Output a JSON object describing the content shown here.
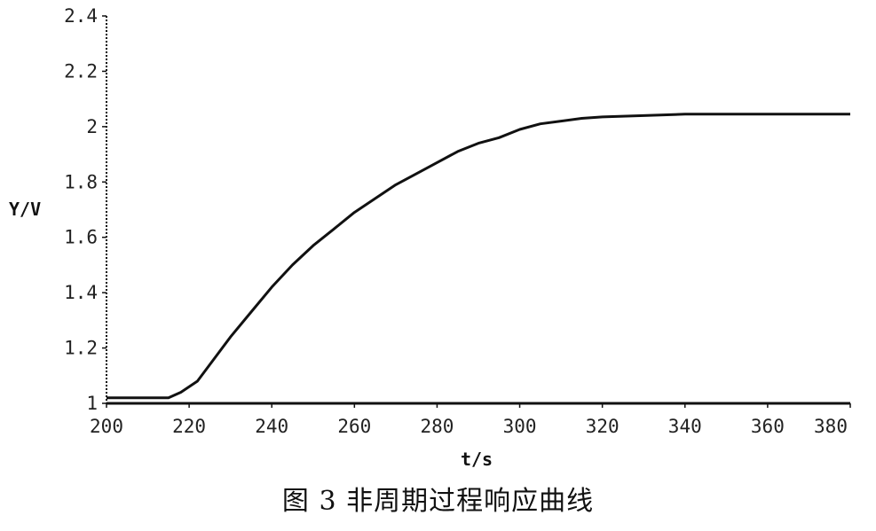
{
  "chart_data": {
    "type": "line",
    "xlabel": "t/s",
    "ylabel": "Y/V",
    "xlim": [
      200,
      380
    ],
    "ylim": [
      1,
      2.4
    ],
    "x_ticks": [
      200,
      220,
      240,
      260,
      280,
      300,
      320,
      340,
      360,
      380
    ],
    "y_ticks": [
      1,
      1.2,
      1.4,
      1.6,
      1.8,
      2,
      2.2,
      2.4
    ],
    "x_tick_labels": [
      "200",
      "220",
      "240",
      "260",
      "280",
      "300",
      "320",
      "340",
      "360",
      "380"
    ],
    "y_tick_labels": [
      "1",
      "1.2",
      "1.4",
      "1.6",
      "1.8",
      "2",
      "2.2",
      "2.4"
    ],
    "grid": false,
    "series": [
      {
        "color": "#111111",
        "x": [
          200,
          210,
          215,
          218,
          222,
          226,
          230,
          235,
          240,
          245,
          250,
          255,
          260,
          265,
          270,
          275,
          280,
          285,
          290,
          295,
          300,
          305,
          310,
          315,
          320,
          330,
          340,
          350,
          360,
          370,
          380
        ],
        "y": [
          1.02,
          1.02,
          1.02,
          1.04,
          1.08,
          1.16,
          1.24,
          1.33,
          1.42,
          1.5,
          1.57,
          1.63,
          1.69,
          1.74,
          1.79,
          1.83,
          1.87,
          1.91,
          1.94,
          1.96,
          1.99,
          2.01,
          2.02,
          2.03,
          2.035,
          2.04,
          2.045,
          2.045,
          2.045,
          2.045,
          2.045
        ]
      }
    ]
  },
  "caption": "图 3  非周期过程响应曲线"
}
